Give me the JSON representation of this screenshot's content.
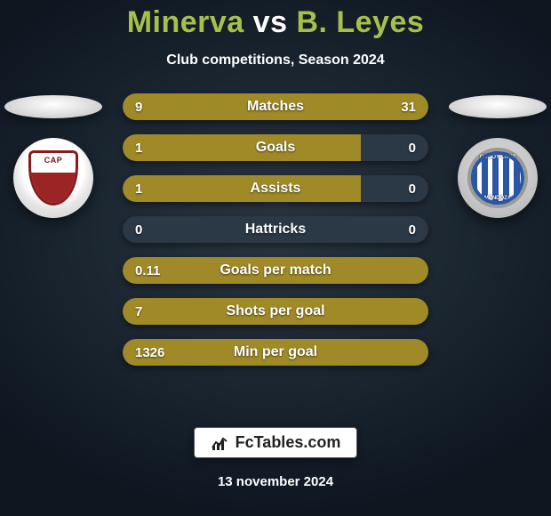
{
  "header": {
    "player_left": "Minerva",
    "vs": "vs",
    "player_right": "B. Leyes",
    "subtitle": "Club competitions, Season 2024",
    "title_color_left": "#a6c04b",
    "title_color_right": "#a6c04b",
    "title_color_vs": "#ffffff"
  },
  "teams": {
    "left": {
      "shield_text": "CAP"
    },
    "right": {
      "ring_top": "GODOY CRUZ",
      "ring_bottom": "MENDOZA"
    }
  },
  "stats": {
    "bar_bg": "#2b3845",
    "fill_color": "#a08a28",
    "rows": [
      {
        "label": "Matches",
        "left_value": "9",
        "right_value": "31",
        "left_pct": 22,
        "right_pct": 78
      },
      {
        "label": "Goals",
        "left_value": "1",
        "right_value": "0",
        "left_pct": 78,
        "right_pct": 0
      },
      {
        "label": "Assists",
        "left_value": "1",
        "right_value": "0",
        "left_pct": 78,
        "right_pct": 0
      },
      {
        "label": "Hattricks",
        "left_value": "0",
        "right_value": "0",
        "left_pct": 0,
        "right_pct": 0
      },
      {
        "label": "Goals per match",
        "left_value": "0.11",
        "right_value": "",
        "left_pct": 100,
        "right_pct": 0
      },
      {
        "label": "Shots per goal",
        "left_value": "7",
        "right_value": "",
        "left_pct": 100,
        "right_pct": 0
      },
      {
        "label": "Min per goal",
        "left_value": "1326",
        "right_value": "",
        "left_pct": 100,
        "right_pct": 0
      }
    ]
  },
  "footer": {
    "brand": "FcTables.com",
    "date": "13 november 2024"
  }
}
